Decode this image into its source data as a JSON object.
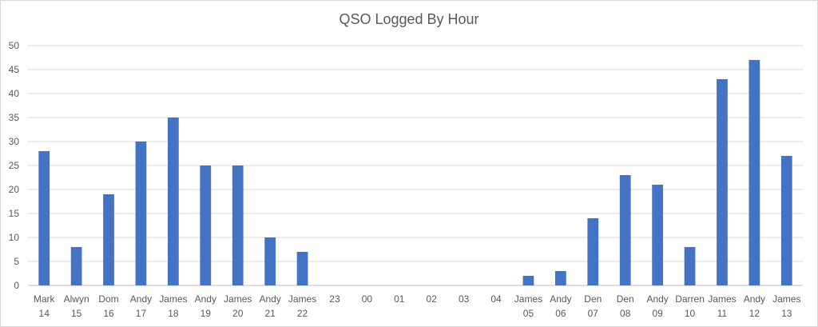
{
  "chart_data": {
    "type": "bar",
    "title": "QSO Logged By Hour",
    "xlabel": "",
    "ylabel": "",
    "ylim": [
      0,
      50
    ],
    "yticks": [
      0,
      5,
      10,
      15,
      20,
      25,
      30,
      35,
      40,
      45,
      50
    ],
    "grid": true,
    "legend": "none",
    "bar_color": "#4472c4",
    "categories": [
      {
        "operator": "Mark",
        "hour": "14"
      },
      {
        "operator": "Alwyn",
        "hour": "15"
      },
      {
        "operator": "Dom",
        "hour": "16"
      },
      {
        "operator": "Andy",
        "hour": "17"
      },
      {
        "operator": "James",
        "hour": "18"
      },
      {
        "operator": "Andy",
        "hour": "19"
      },
      {
        "operator": "James",
        "hour": "20"
      },
      {
        "operator": "Andy",
        "hour": "21"
      },
      {
        "operator": "James",
        "hour": "22"
      },
      {
        "operator": "",
        "hour": "23"
      },
      {
        "operator": "",
        "hour": "00"
      },
      {
        "operator": "",
        "hour": "01"
      },
      {
        "operator": "",
        "hour": "02"
      },
      {
        "operator": "",
        "hour": "03"
      },
      {
        "operator": "",
        "hour": "04"
      },
      {
        "operator": "James",
        "hour": "05"
      },
      {
        "operator": "Andy",
        "hour": "06"
      },
      {
        "operator": "Den",
        "hour": "07"
      },
      {
        "operator": "Den",
        "hour": "08"
      },
      {
        "operator": "Andy",
        "hour": "09"
      },
      {
        "operator": "Darren",
        "hour": "10"
      },
      {
        "operator": "James",
        "hour": "11"
      },
      {
        "operator": "Andy",
        "hour": "12"
      },
      {
        "operator": "James",
        "hour": "13"
      }
    ],
    "values": [
      28,
      8,
      19,
      30,
      35,
      25,
      25,
      10,
      7,
      0,
      0,
      0,
      0,
      0,
      0,
      2,
      3,
      14,
      23,
      21,
      8,
      43,
      47,
      27
    ]
  }
}
